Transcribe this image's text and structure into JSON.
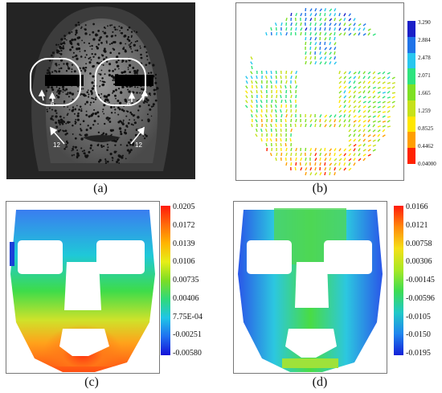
{
  "captions": {
    "a": "(a)",
    "b": "(b)",
    "c": "(c)",
    "d": "(d)"
  },
  "panel_a": {
    "arrow_labels": [
      "6",
      "6",
      "12",
      "12"
    ]
  },
  "colorbar_b": {
    "ticks": [
      "3.290",
      "2.884",
      "2.478",
      "2.071",
      "1.665",
      "1.259",
      "0.8525",
      "0.4462",
      "0.04000"
    ],
    "colors": [
      "#1a1fc8",
      "#1f73e8",
      "#28c6ef",
      "#2ee37e",
      "#7ee023",
      "#c6e11a",
      "#ffe600",
      "#ff9e00",
      "#ff2200"
    ]
  },
  "colorbar_c": {
    "ticks": [
      "0.0205",
      "0.0172",
      "0.0139",
      "0.0106",
      "0.00735",
      "0.00406",
      "7.75E-04",
      "-0.00251",
      "-0.00580"
    ]
  },
  "colorbar_d": {
    "ticks": [
      "0.0166",
      "0.0121",
      "0.00758",
      "0.00306",
      "-0.00145",
      "-0.00596",
      "-0.0105",
      "-0.0150",
      "-0.0195"
    ]
  }
}
